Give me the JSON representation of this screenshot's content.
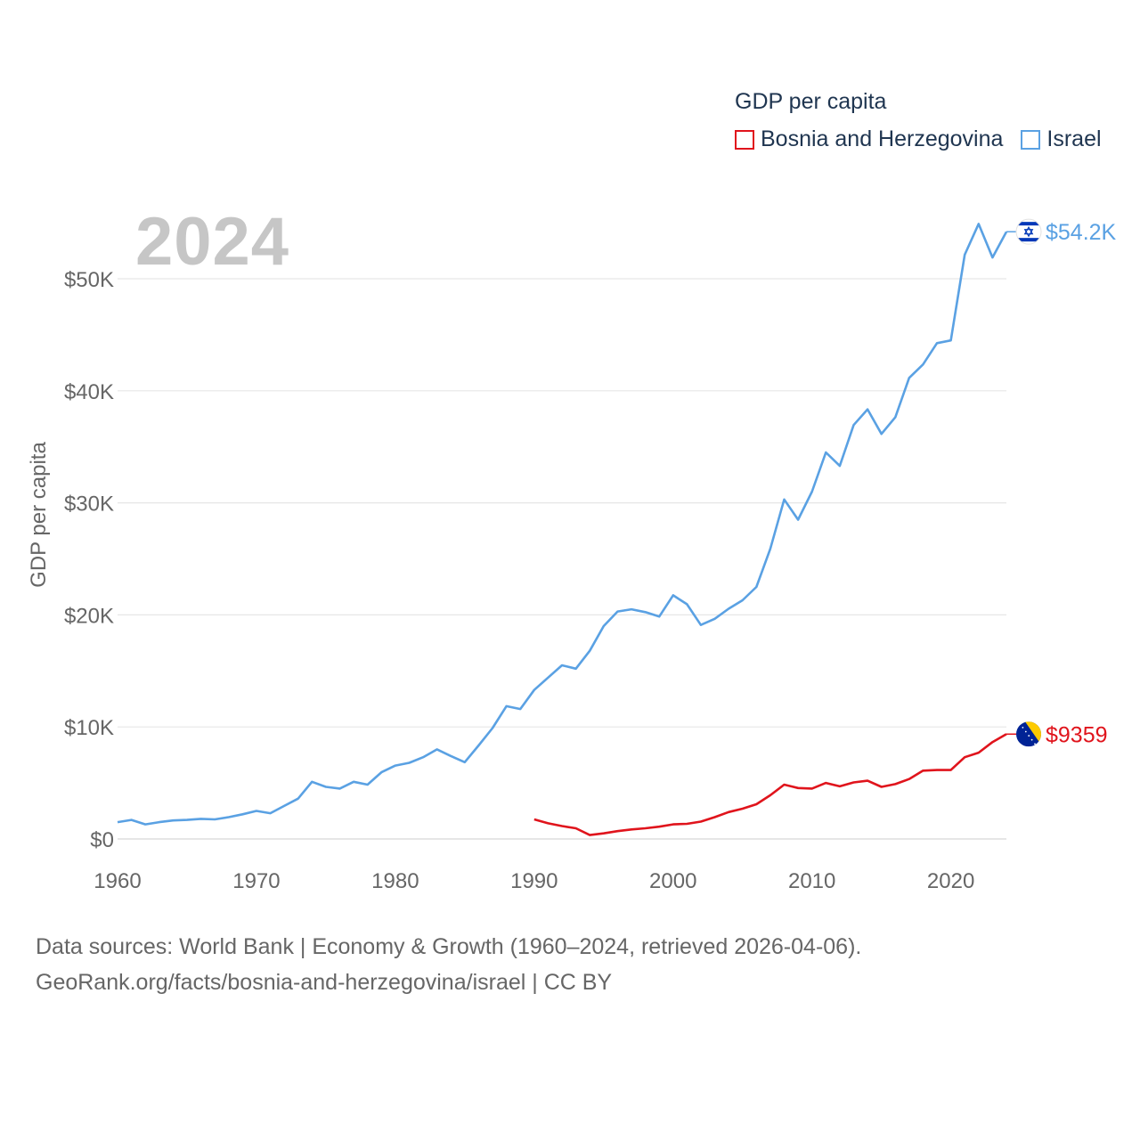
{
  "legend": {
    "title": "GDP per capita",
    "items": [
      {
        "label": "Bosnia and Herzegovina",
        "color": "#e0141c"
      },
      {
        "label": "Israel",
        "color": "#5aa1e3"
      }
    ]
  },
  "year_label": "2024",
  "footer": {
    "line1": "Data sources: World Bank | Economy & Growth (1960–2024, retrieved 2026-04-06).",
    "line2": "GeoRank.org/facts/bosnia-and-herzegovina/israel | CC BY"
  },
  "chart_data": {
    "type": "line",
    "title": "GDP per capita",
    "xlabel": "",
    "ylabel": "GDP per capita",
    "xlim": [
      1960,
      2024
    ],
    "ylim": [
      0,
      55000
    ],
    "x_ticks": [
      {
        "value": 1960,
        "label": "1960"
      },
      {
        "value": 1970,
        "label": "1970"
      },
      {
        "value": 1980,
        "label": "1980"
      },
      {
        "value": 1990,
        "label": "1990"
      },
      {
        "value": 2000,
        "label": "2000"
      },
      {
        "value": 2010,
        "label": "2010"
      },
      {
        "value": 2020,
        "label": "2020"
      }
    ],
    "y_ticks": [
      {
        "value": 0,
        "label": "$0"
      },
      {
        "value": 10000,
        "label": "$10K"
      },
      {
        "value": 20000,
        "label": "$20K"
      },
      {
        "value": 30000,
        "label": "$30K"
      },
      {
        "value": 40000,
        "label": "$40K"
      },
      {
        "value": 50000,
        "label": "$50K"
      }
    ],
    "grid": true,
    "series": [
      {
        "name": "Israel",
        "color": "#5aa1e3",
        "end_label": "$54.2K",
        "flag": "israel-flag-icon",
        "x": [
          1960,
          1961,
          1962,
          1963,
          1964,
          1965,
          1966,
          1967,
          1968,
          1969,
          1970,
          1971,
          1972,
          1973,
          1974,
          1975,
          1976,
          1977,
          1978,
          1979,
          1980,
          1981,
          1982,
          1983,
          1984,
          1985,
          1986,
          1987,
          1988,
          1989,
          1990,
          1991,
          1992,
          1993,
          1994,
          1995,
          1996,
          1997,
          1998,
          1999,
          2000,
          2001,
          2002,
          2003,
          2004,
          2005,
          2006,
          2007,
          2008,
          2009,
          2010,
          2011,
          2012,
          2013,
          2014,
          2015,
          2016,
          2017,
          2018,
          2019,
          2020,
          2021,
          2022,
          2023,
          2024
        ],
        "values": [
          1500,
          1700,
          1300,
          1500,
          1650,
          1700,
          1800,
          1750,
          1950,
          2200,
          2500,
          2300,
          2950,
          3600,
          5100,
          4650,
          4500,
          5100,
          4850,
          5950,
          6550,
          6800,
          7300,
          8000,
          7400,
          6850,
          8350,
          9900,
          11850,
          11600,
          13300,
          14400,
          15500,
          15200,
          16800,
          19000,
          20300,
          20500,
          20250,
          19850,
          21750,
          20950,
          19100,
          19650,
          20550,
          21300,
          22500,
          25900,
          30300,
          28500,
          31000,
          34500,
          33300,
          36950,
          38350,
          36150,
          37650,
          41150,
          42350,
          44250,
          44500,
          52150,
          54900,
          51900,
          54200
        ]
      },
      {
        "name": "Bosnia and Herzegovina",
        "color": "#e0141c",
        "end_label": "$9359",
        "flag": "bosnia-flag-icon",
        "x": [
          1990,
          1991,
          1992,
          1993,
          1994,
          1995,
          1996,
          1997,
          1998,
          1999,
          2000,
          2001,
          2002,
          2003,
          2004,
          2005,
          2006,
          2007,
          2008,
          2009,
          2010,
          2011,
          2012,
          2013,
          2014,
          2015,
          2016,
          2017,
          2018,
          2019,
          2020,
          2021,
          2022,
          2023,
          2024
        ],
        "values": [
          1750,
          1400,
          1150,
          950,
          350,
          500,
          700,
          850,
          950,
          1100,
          1300,
          1350,
          1550,
          1950,
          2400,
          2700,
          3100,
          3900,
          4850,
          4550,
          4500,
          5000,
          4700,
          5050,
          5200,
          4650,
          4900,
          5350,
          6100,
          6150,
          6150,
          7300,
          7700,
          8650,
          9359
        ]
      }
    ]
  }
}
